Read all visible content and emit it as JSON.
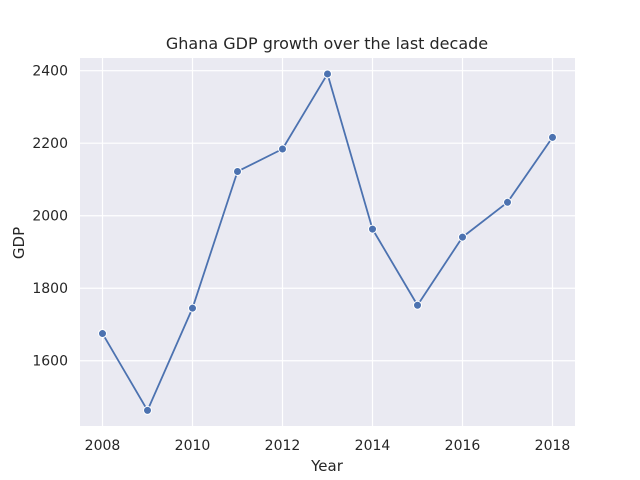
{
  "chart_data": {
    "type": "line",
    "title": "Ghana GDP growth over the last decade",
    "xlabel": "Year",
    "ylabel": "GDP",
    "x": [
      2008,
      2009,
      2010,
      2011,
      2012,
      2013,
      2014,
      2015,
      2016,
      2017,
      2018
    ],
    "series": [
      {
        "values": [
          1675,
          1463,
          1745,
          2122,
          2184,
          2391,
          1963,
          1753,
          1941,
          2037,
          2216
        ]
      }
    ],
    "xlim": [
      2007.5,
      2018.5
    ],
    "ylim": [
      1420,
      2435
    ],
    "xticks": [
      2008,
      2010,
      2012,
      2014,
      2016,
      2018
    ],
    "yticks": [
      1600,
      1800,
      2000,
      2200,
      2400
    ],
    "grid": true,
    "background_color": "#eaeaf2",
    "grid_color": "#ffffff",
    "line_color": "#4c72b0",
    "marker": "circle"
  }
}
